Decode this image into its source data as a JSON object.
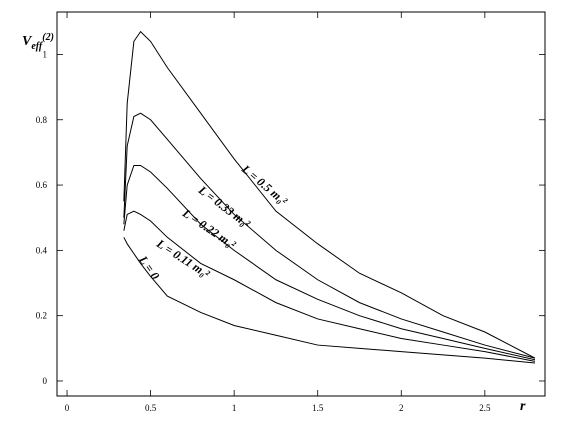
{
  "chart_data": {
    "type": "line",
    "y_label": {
      "main": "V",
      "sub": "eff",
      "sup": "(2)"
    },
    "x_label": "r",
    "x": [
      0.34,
      0.36,
      0.4,
      0.44,
      0.5,
      0.6,
      0.8,
      1,
      1.25,
      1.5,
      1.75,
      2,
      2.25,
      2.5,
      2.8
    ],
    "series": [
      {
        "name": "L = 0.5 m₀²",
        "color": "#000000",
        "values": [
          0.55,
          0.85,
          1.04,
          1.07,
          1.04,
          0.96,
          0.82,
          0.68,
          0.52,
          0.42,
          0.33,
          0.27,
          0.2,
          0.15,
          0.07
        ]
      },
      {
        "name": "L = 0.33 m₀²",
        "color": "#000000",
        "values": [
          0.5,
          0.72,
          0.81,
          0.82,
          0.8,
          0.74,
          0.62,
          0.51,
          0.4,
          0.31,
          0.24,
          0.19,
          0.15,
          0.11,
          0.07
        ]
      },
      {
        "name": "L = 0.22 m₀²",
        "color": "#000000",
        "values": [
          0.48,
          0.6,
          0.66,
          0.66,
          0.64,
          0.59,
          0.48,
          0.4,
          0.31,
          0.25,
          0.2,
          0.16,
          0.13,
          0.1,
          0.065
        ]
      },
      {
        "name": "L = 0.11 m₀²",
        "color": "#000000",
        "values": [
          0.46,
          0.51,
          0.52,
          0.51,
          0.49,
          0.44,
          0.36,
          0.31,
          0.24,
          0.19,
          0.16,
          0.13,
          0.11,
          0.09,
          0.06
        ]
      },
      {
        "name": "L = 0",
        "color": "#000000",
        "values": [
          0.44,
          0.42,
          0.39,
          0.36,
          0.32,
          0.26,
          0.21,
          0.17,
          0.14,
          0.11,
          0.1,
          0.09,
          0.08,
          0.07,
          0.055
        ]
      }
    ],
    "xlim": [
      -0.06,
      2.86
    ],
    "ylim": [
      -0.046,
      1.13
    ],
    "xticks": [
      0,
      0.5,
      1,
      1.5,
      2,
      2.5
    ],
    "yticks": [
      0,
      0.2,
      0.4,
      0.6,
      0.8,
      1
    ],
    "grid": false
  }
}
